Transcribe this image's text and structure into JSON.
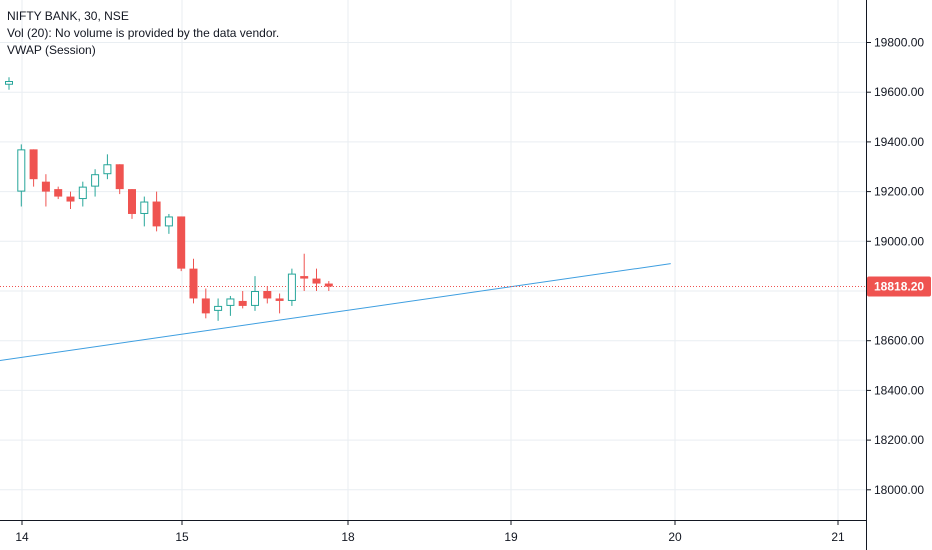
{
  "legend": {
    "symbol_line": "NIFTY BANK, 30, NSE",
    "volume_line": "Vol (20): No volume is provided by the data vendor.",
    "vwap_line": "VWAP (Session)"
  },
  "colors": {
    "up": "#26a69a",
    "down": "#ef5350",
    "trendline": "#3d9ee0",
    "grid": "#e9eef2",
    "axis_text": "#131722",
    "price_line": "#ef5350",
    "price_tag": "#ef5350"
  },
  "chart_data": {
    "type": "candlestick",
    "symbol": "NIFTY BANK",
    "interval": "30",
    "exchange": "NSE",
    "y_ticks": [
      18000,
      18200,
      18400,
      18600,
      18800,
      19000,
      19200,
      19400,
      19600,
      19800
    ],
    "y_tick_labels": [
      "18000.00",
      "18200.00",
      "18400.00",
      "18600.00",
      "18800.00",
      "19000.00",
      "19200.00",
      "19400.00",
      "19600.00",
      "19800.00"
    ],
    "x_tick_labels": [
      "14",
      "15",
      "18",
      "19",
      "20",
      "21"
    ],
    "current_price": 18818.2,
    "current_price_label": "18818.20",
    "candles": [
      {
        "o": 19630,
        "h": 19660,
        "l": 19610,
        "c": 19645
      },
      {
        "o": 19200,
        "h": 19390,
        "l": 19140,
        "c": 19370
      },
      {
        "o": 19370,
        "h": 19370,
        "l": 19220,
        "c": 19250
      },
      {
        "o": 19240,
        "h": 19270,
        "l": 19140,
        "c": 19200
      },
      {
        "o": 19210,
        "h": 19220,
        "l": 19170,
        "c": 19180
      },
      {
        "o": 19180,
        "h": 19200,
        "l": 19130,
        "c": 19160
      },
      {
        "o": 19170,
        "h": 19240,
        "l": 19140,
        "c": 19220
      },
      {
        "o": 19220,
        "h": 19290,
        "l": 19180,
        "c": 19270
      },
      {
        "o": 19270,
        "h": 19350,
        "l": 19250,
        "c": 19310
      },
      {
        "o": 19310,
        "h": 19310,
        "l": 19190,
        "c": 19210
      },
      {
        "o": 19210,
        "h": 19210,
        "l": 19090,
        "c": 19110
      },
      {
        "o": 19110,
        "h": 19180,
        "l": 19060,
        "c": 19160
      },
      {
        "o": 19160,
        "h": 19200,
        "l": 19040,
        "c": 19060
      },
      {
        "o": 19060,
        "h": 19110,
        "l": 19030,
        "c": 19100
      },
      {
        "o": 19100,
        "h": 19100,
        "l": 18880,
        "c": 18890
      },
      {
        "o": 18890,
        "h": 18930,
        "l": 18750,
        "c": 18770
      },
      {
        "o": 18770,
        "h": 18810,
        "l": 18690,
        "c": 18710
      },
      {
        "o": 18720,
        "h": 18770,
        "l": 18680,
        "c": 18740
      },
      {
        "o": 18740,
        "h": 18780,
        "l": 18700,
        "c": 18770
      },
      {
        "o": 18760,
        "h": 18800,
        "l": 18730,
        "c": 18740
      },
      {
        "o": 18740,
        "h": 18860,
        "l": 18720,
        "c": 18800
      },
      {
        "o": 18800,
        "h": 18820,
        "l": 18750,
        "c": 18770
      },
      {
        "o": 18770,
        "h": 18790,
        "l": 18710,
        "c": 18760
      },
      {
        "o": 18760,
        "h": 18890,
        "l": 18740,
        "c": 18870
      },
      {
        "o": 18860,
        "h": 18950,
        "l": 18800,
        "c": 18850
      },
      {
        "o": 18850,
        "h": 18890,
        "l": 18800,
        "c": 18830
      },
      {
        "o": 18830,
        "h": 18840,
        "l": 18800,
        "c": 18818
      }
    ],
    "trendline": {
      "from": {
        "candle": -0.8,
        "price": 18520
      },
      "to": {
        "candle": 53.8,
        "price": 18910
      }
    }
  }
}
